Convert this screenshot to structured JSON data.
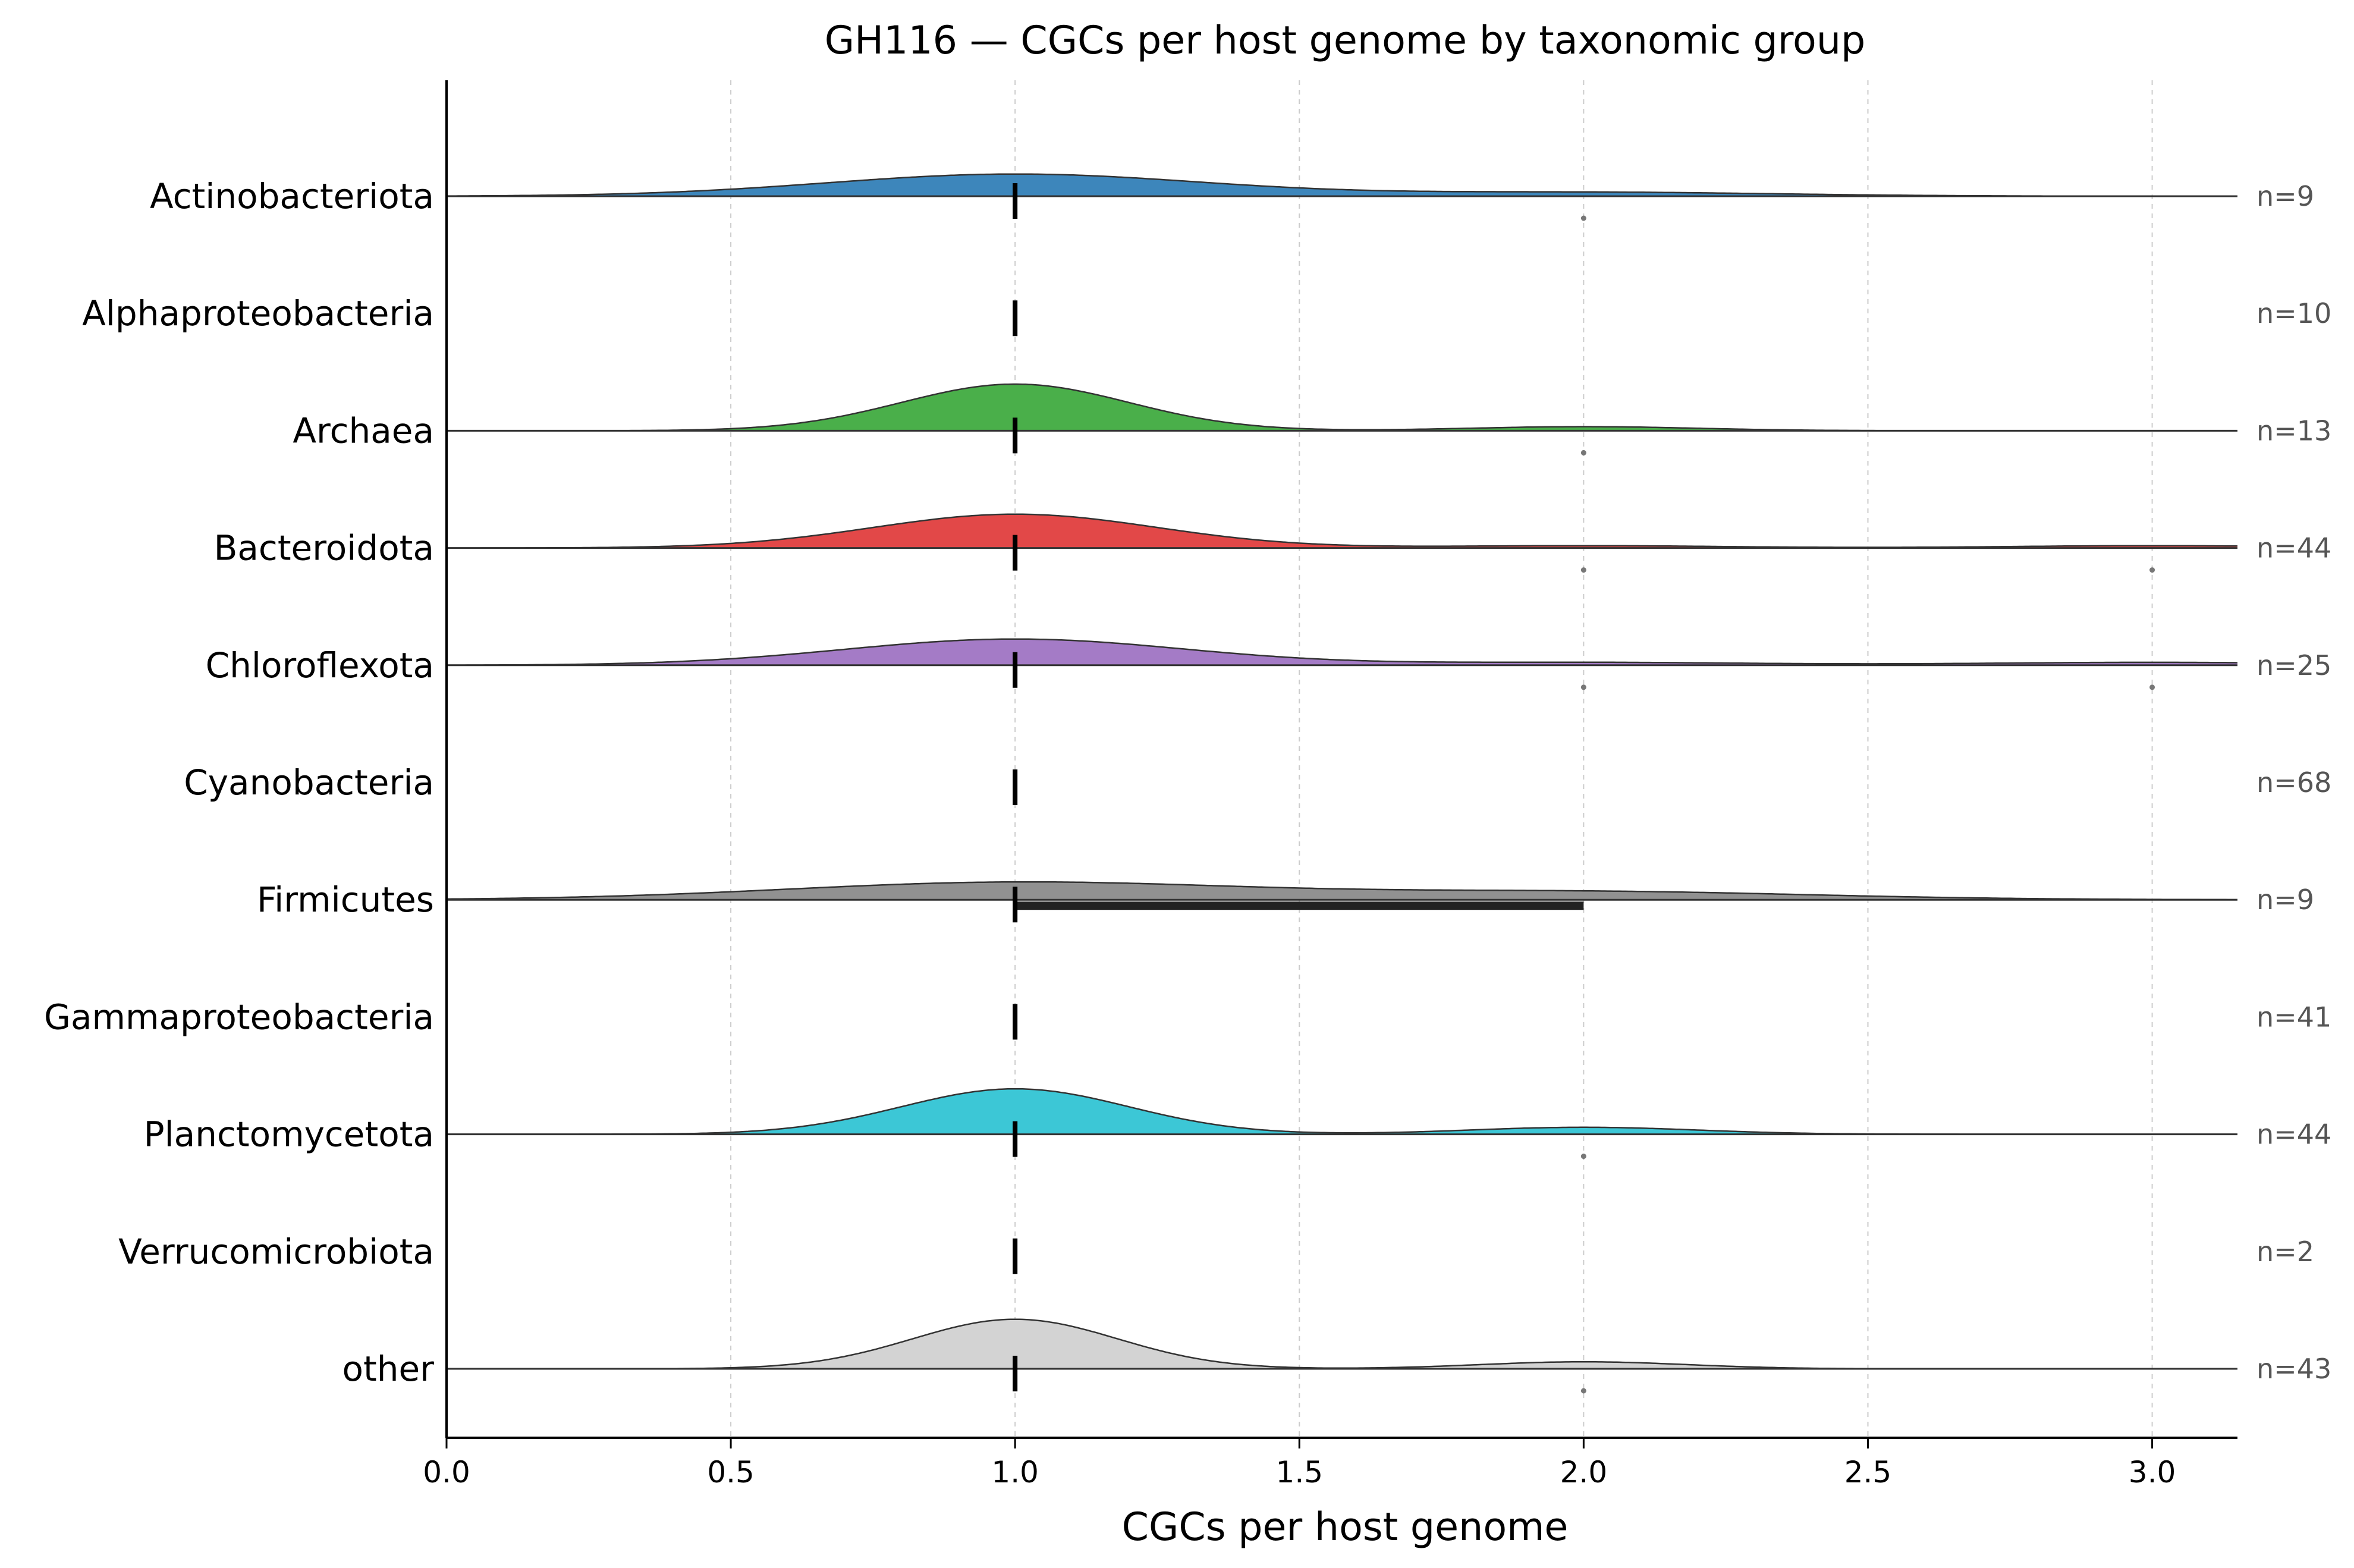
{
  "chart_data": {
    "type": "ridgeline",
    "title": "GH116 — CGCs per host genome by taxonomic group",
    "xlabel": "CGCs per host genome",
    "ylabel": "",
    "xlim": [
      0.0,
      3.15
    ],
    "xticks": [
      "0.0",
      "0.5",
      "1.0",
      "1.5",
      "2.0",
      "2.5",
      "3.0"
    ],
    "grid": "vertical dashed",
    "groups": [
      {
        "name": "Actinobacteriota",
        "n_label": "n=9",
        "color": "#3d86bb",
        "has_density": true,
        "median": 1.0,
        "q1": 1.0,
        "q3": 1.0,
        "density": [
          {
            "at": 1.0,
            "height": 0.38,
            "bw": 0.33
          },
          {
            "at": 2.0,
            "height": 0.07,
            "bw": 0.33
          }
        ],
        "outliers": [
          2.0
        ]
      },
      {
        "name": "Alphaproteobacteria",
        "n_label": "n=10",
        "color": "#ff7f0e",
        "has_density": false,
        "median": 1.0,
        "q1": 1.0,
        "q3": 1.0,
        "density": [],
        "outliers": []
      },
      {
        "name": "Archaea",
        "n_label": "n=13",
        "color": "#4aaf4a",
        "has_density": true,
        "median": 1.0,
        "q1": 1.0,
        "q3": 1.0,
        "density": [
          {
            "at": 1.0,
            "height": 0.8,
            "bw": 0.2
          },
          {
            "at": 2.0,
            "height": 0.07,
            "bw": 0.2
          }
        ],
        "outliers": [
          2.0
        ]
      },
      {
        "name": "Bacteroidota",
        "n_label": "n=44",
        "color": "#e24848",
        "has_density": true,
        "median": 1.0,
        "q1": 1.0,
        "q3": 1.0,
        "density": [
          {
            "at": 1.0,
            "height": 0.58,
            "bw": 0.25
          },
          {
            "at": 2.0,
            "height": 0.04,
            "bw": 0.25
          },
          {
            "at": 3.0,
            "height": 0.04,
            "bw": 0.25
          }
        ],
        "outliers": [
          2.0,
          3.0
        ]
      },
      {
        "name": "Chloroflexota",
        "n_label": "n=25",
        "color": "#a47bc6",
        "has_density": true,
        "median": 1.0,
        "q1": 1.0,
        "q3": 1.0,
        "density": [
          {
            "at": 1.0,
            "height": 0.45,
            "bw": 0.3
          },
          {
            "at": 2.0,
            "height": 0.05,
            "bw": 0.3
          },
          {
            "at": 3.0,
            "height": 0.05,
            "bw": 0.3
          }
        ],
        "outliers": [
          2.0,
          3.0
        ]
      },
      {
        "name": "Cyanobacteria",
        "n_label": "n=68",
        "color": "#8c564b",
        "has_density": false,
        "median": 1.0,
        "q1": 1.0,
        "q3": 1.0,
        "density": [],
        "outliers": []
      },
      {
        "name": "Firmicutes",
        "n_label": "n=9",
        "color": "#919191",
        "has_density": true,
        "median": 1.0,
        "q1": 1.0,
        "q3": 2.0,
        "density": [
          {
            "at": 1.0,
            "height": 0.3,
            "bw": 0.4
          },
          {
            "at": 2.0,
            "height": 0.14,
            "bw": 0.4
          }
        ],
        "outliers": []
      },
      {
        "name": "Gammaproteobacteria",
        "n_label": "n=41",
        "color": "#bcbd22",
        "has_density": false,
        "median": 1.0,
        "q1": 1.0,
        "q3": 1.0,
        "density": [],
        "outliers": []
      },
      {
        "name": "Planctomycetota",
        "n_label": "n=44",
        "color": "#3cc7d6",
        "has_density": true,
        "median": 1.0,
        "q1": 1.0,
        "q3": 1.0,
        "density": [
          {
            "at": 1.0,
            "height": 0.78,
            "bw": 0.2
          },
          {
            "at": 2.0,
            "height": 0.12,
            "bw": 0.2
          }
        ],
        "outliers": [
          2.0
        ]
      },
      {
        "name": "Verrucomicrobiota",
        "n_label": "n=2",
        "color": "#17becf",
        "has_density": false,
        "median": 1.0,
        "q1": 1.0,
        "q3": 1.0,
        "density": [],
        "outliers": []
      },
      {
        "name": "other",
        "n_label": "n=43",
        "color": "#d3d3d3",
        "has_density": true,
        "median": 1.0,
        "q1": 1.0,
        "q3": 1.0,
        "density": [
          {
            "at": 1.0,
            "height": 0.85,
            "bw": 0.18
          },
          {
            "at": 2.0,
            "height": 0.12,
            "bw": 0.18
          }
        ],
        "outliers": [
          2.0
        ]
      }
    ]
  }
}
